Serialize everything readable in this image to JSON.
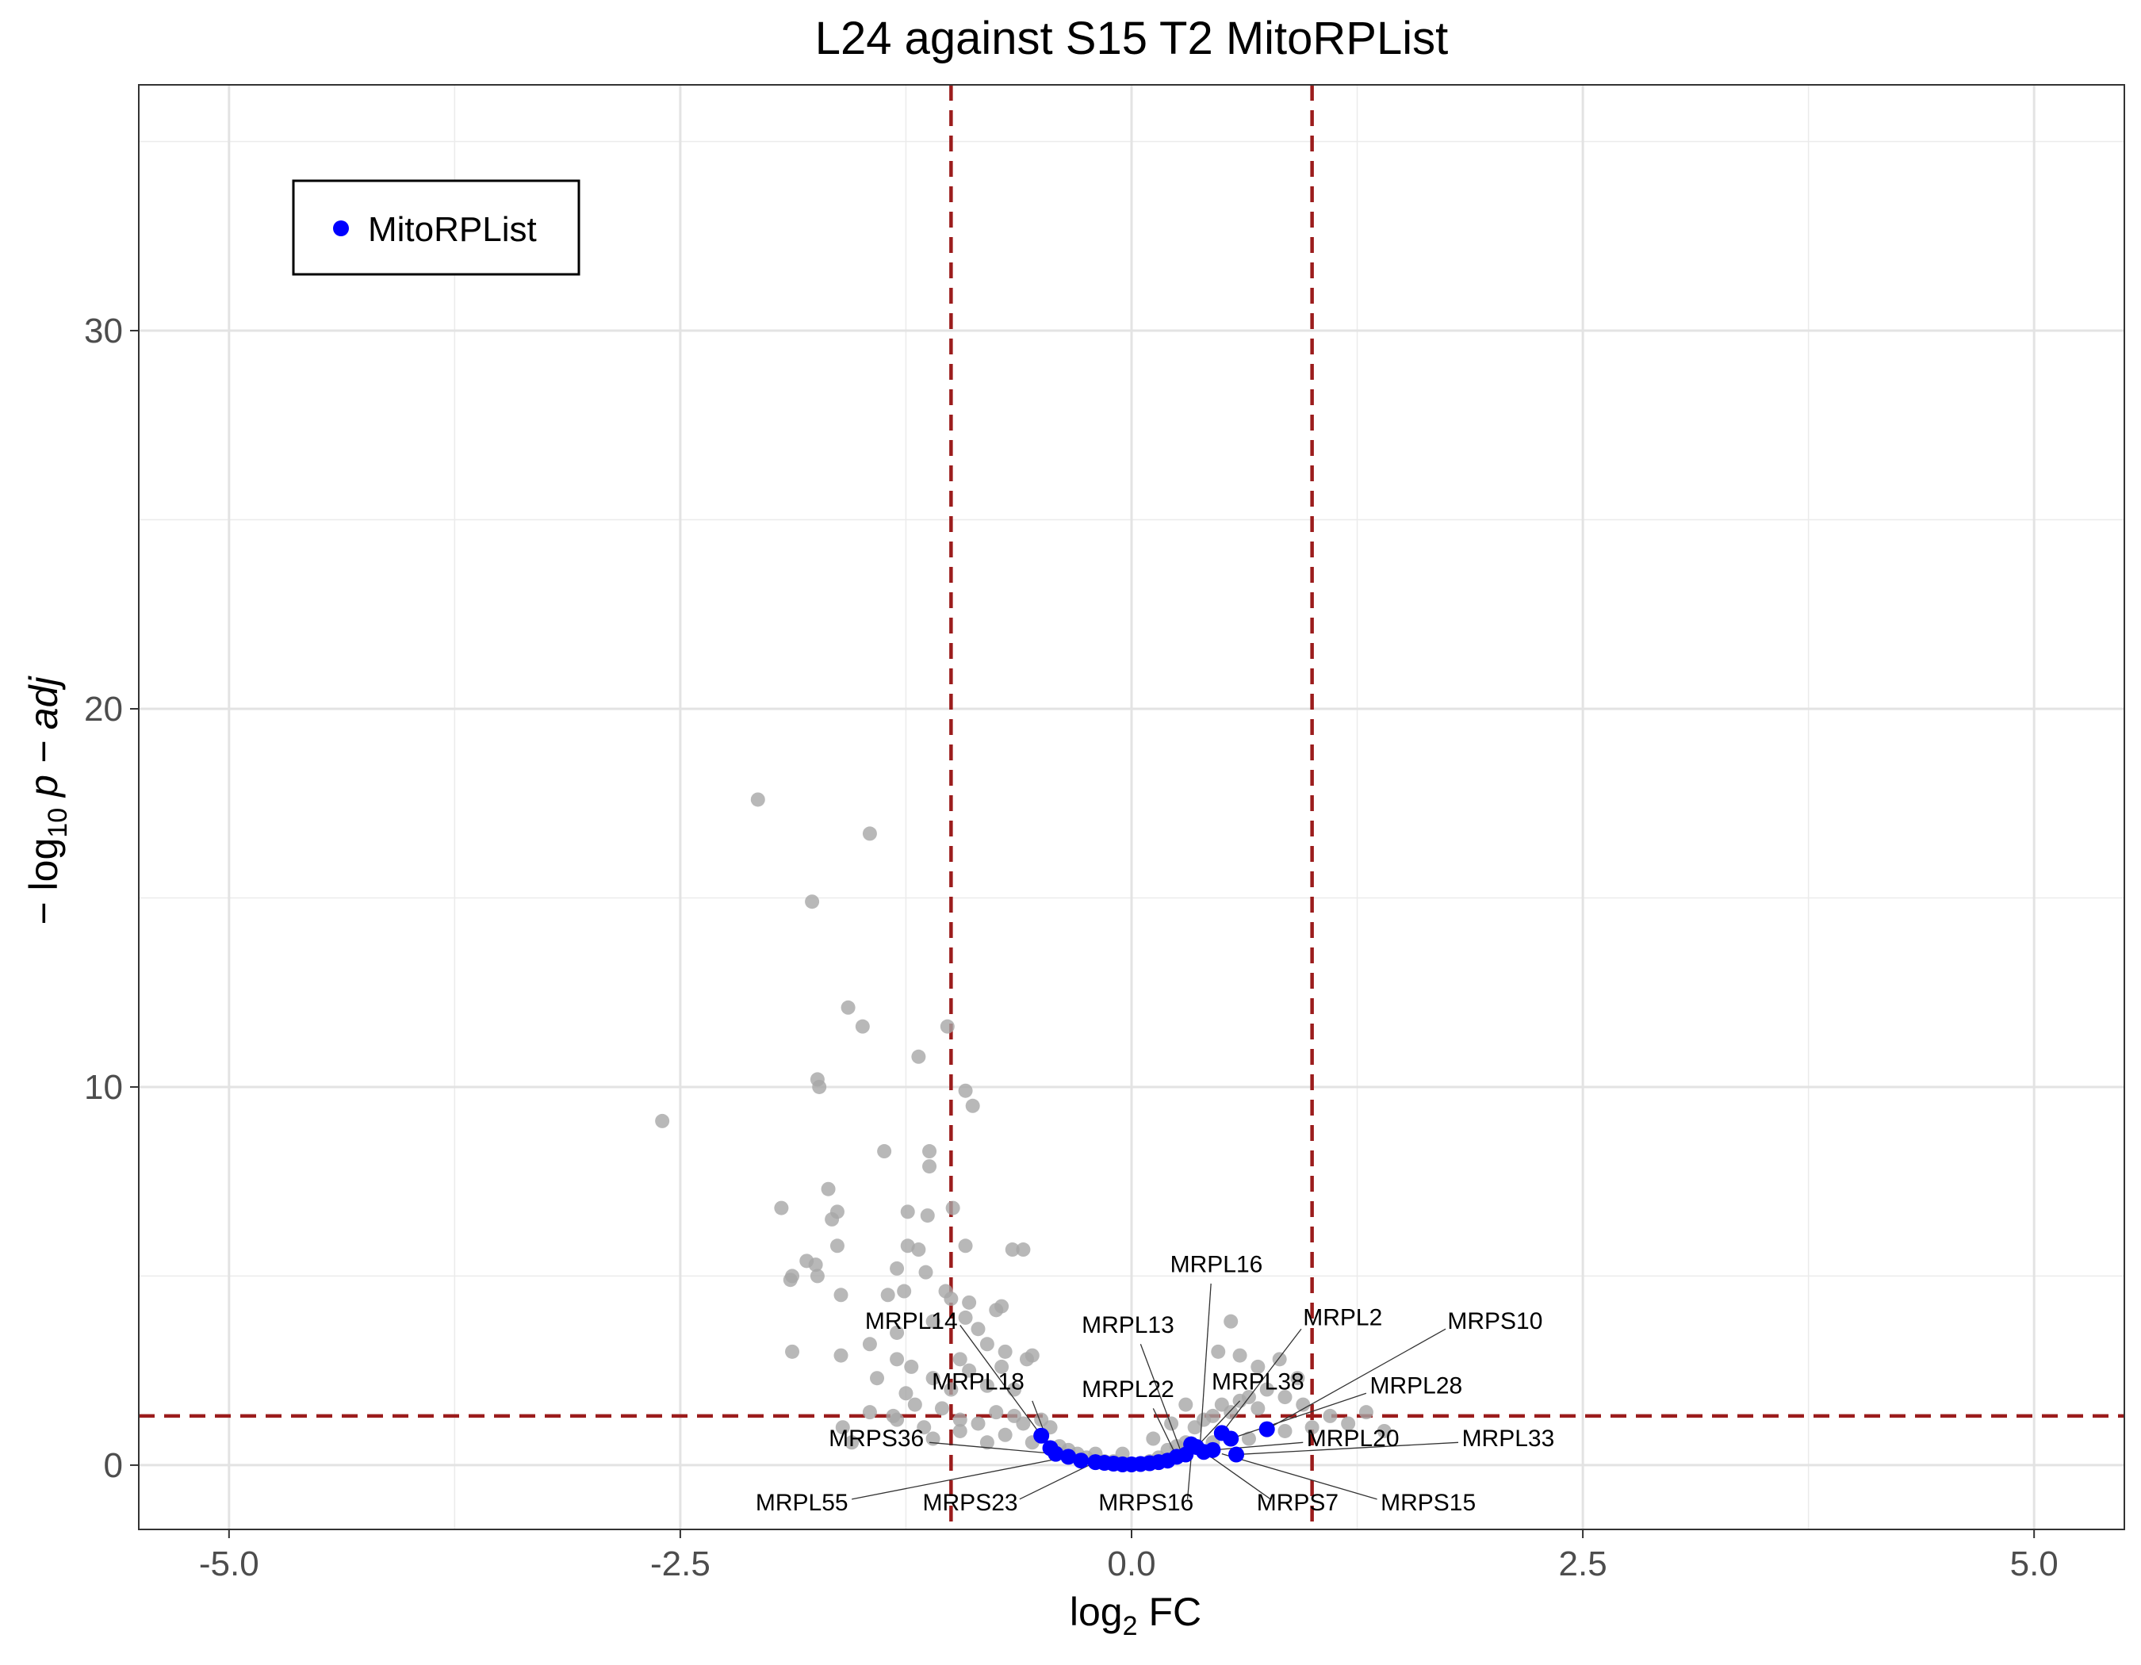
{
  "chart_data": {
    "type": "scatter",
    "title": "L24 against S15 T2 MitoRPList",
    "xlabel": {
      "base": "log",
      "sub": "2",
      "rest": " FC"
    },
    "ylabel": {
      "prefix": "− log",
      "sub": "10",
      "rest": " p − adj"
    },
    "xlim": [
      -5.5,
      5.5
    ],
    "ylim": [
      -1.7,
      36.5
    ],
    "x_ticks": [
      -5.0,
      -2.5,
      0.0,
      2.5,
      5.0
    ],
    "x_tick_labels": [
      "-5.0",
      "-2.5",
      "0.0",
      "2.5",
      "5.0"
    ],
    "y_ticks": [
      0,
      10,
      20,
      30
    ],
    "y_tick_labels": [
      "0",
      "10",
      "20",
      "30"
    ],
    "x_minor_ticks": [
      -3.75,
      -1.25,
      1.25,
      3.75
    ],
    "y_minor_ticks": [
      5,
      15,
      25,
      35
    ],
    "grid": true,
    "thresholds": {
      "x": [
        -1,
        1
      ],
      "y": 1.3,
      "color": "#9b1c1c"
    },
    "legend": {
      "position": "top-left",
      "entries": [
        {
          "name": "MitoRPList",
          "color": "#0000ff"
        }
      ]
    },
    "colors": {
      "background_points": "#a6a6a6",
      "highlight_points": "#0000ff"
    },
    "series": [
      {
        "name": "background",
        "points": [
          [
            -2.6,
            9.1
          ],
          [
            -2.07,
            17.6
          ],
          [
            -1.45,
            16.7
          ],
          [
            -1.77,
            14.9
          ],
          [
            -1.57,
            12.1
          ],
          [
            -1.49,
            11.6
          ],
          [
            -1.02,
            11.6
          ],
          [
            -1.18,
            10.8
          ],
          [
            -1.74,
            10.2
          ],
          [
            -1.73,
            10.0
          ],
          [
            -0.92,
            9.9
          ],
          [
            -0.88,
            9.5
          ],
          [
            -1.37,
            8.3
          ],
          [
            -1.12,
            8.3
          ],
          [
            -1.12,
            7.9
          ],
          [
            -1.68,
            7.3
          ],
          [
            -1.94,
            6.8
          ],
          [
            -1.63,
            6.7
          ],
          [
            -1.66,
            6.5
          ],
          [
            -1.24,
            6.7
          ],
          [
            -1.13,
            6.6
          ],
          [
            -0.99,
            6.8
          ],
          [
            -1.24,
            5.8
          ],
          [
            -1.63,
            5.8
          ],
          [
            -1.18,
            5.7
          ],
          [
            -0.92,
            5.8
          ],
          [
            -0.66,
            5.7
          ],
          [
            -0.6,
            5.7
          ],
          [
            -1.8,
            5.4
          ],
          [
            -1.75,
            5.3
          ],
          [
            -1.88,
            5.0
          ],
          [
            -1.89,
            4.9
          ],
          [
            -1.74,
            5.0
          ],
          [
            -1.3,
            5.2
          ],
          [
            -1.14,
            5.1
          ],
          [
            -1.26,
            4.6
          ],
          [
            -1.03,
            4.6
          ],
          [
            -1.35,
            4.5
          ],
          [
            -1.61,
            4.5
          ],
          [
            -1.0,
            4.4
          ],
          [
            -0.9,
            4.3
          ],
          [
            -0.72,
            4.2
          ],
          [
            -0.75,
            4.1
          ],
          [
            -0.92,
            3.9
          ],
          [
            -1.1,
            3.8
          ],
          [
            -0.85,
            3.6
          ],
          [
            -1.3,
            3.5
          ],
          [
            -1.45,
            3.2
          ],
          [
            -0.8,
            3.2
          ],
          [
            -0.7,
            3.0
          ],
          [
            -1.88,
            3.0
          ],
          [
            -1.61,
            2.9
          ],
          [
            -1.3,
            2.8
          ],
          [
            -1.22,
            2.6
          ],
          [
            -0.95,
            2.8
          ],
          [
            -0.55,
            2.9
          ],
          [
            -0.58,
            2.8
          ],
          [
            -1.41,
            2.3
          ],
          [
            -1.1,
            2.3
          ],
          [
            -0.8,
            2.1
          ],
          [
            -1.0,
            2.0
          ],
          [
            -1.25,
            1.9
          ],
          [
            -0.65,
            2.0
          ],
          [
            -1.45,
            1.4
          ],
          [
            -1.32,
            1.3
          ],
          [
            -1.2,
            1.6
          ],
          [
            -1.05,
            1.5
          ],
          [
            -0.95,
            1.2
          ],
          [
            -0.85,
            1.1
          ],
          [
            -0.75,
            1.4
          ],
          [
            -0.65,
            1.3
          ],
          [
            -1.15,
            1.0
          ],
          [
            -0.95,
            0.9
          ],
          [
            -0.7,
            0.8
          ],
          [
            -0.6,
            1.1
          ],
          [
            -0.5,
            1.2
          ],
          [
            -0.45,
            1.0
          ],
          [
            -1.3,
            1.2
          ],
          [
            -1.1,
            0.7
          ],
          [
            -0.8,
            0.6
          ],
          [
            -0.55,
            0.6
          ],
          [
            -0.4,
            0.5
          ],
          [
            -0.35,
            0.4
          ],
          [
            -0.3,
            0.3
          ],
          [
            -0.25,
            0.2
          ],
          [
            -0.2,
            0.3
          ],
          [
            -0.15,
            0.1
          ],
          [
            -0.1,
            0.1
          ],
          [
            -0.05,
            0.05
          ],
          [
            0.05,
            0.05
          ],
          [
            0.1,
            0.1
          ],
          [
            0.15,
            0.2
          ],
          [
            0.2,
            0.4
          ],
          [
            0.25,
            0.5
          ],
          [
            0.3,
            0.6
          ],
          [
            0.35,
            1.0
          ],
          [
            0.4,
            1.2
          ],
          [
            0.45,
            1.3
          ],
          [
            0.5,
            1.6
          ],
          [
            0.55,
            1.4
          ],
          [
            0.6,
            1.7
          ],
          [
            0.65,
            1.8
          ],
          [
            0.7,
            1.5
          ],
          [
            0.75,
            2.0
          ],
          [
            0.85,
            1.8
          ],
          [
            0.95,
            1.6
          ],
          [
            1.1,
            1.3
          ],
          [
            1.2,
            1.1
          ],
          [
            1.3,
            1.4
          ],
          [
            1.4,
            0.9
          ],
          [
            0.48,
            3.0
          ],
          [
            0.6,
            2.9
          ],
          [
            0.55,
            3.8
          ],
          [
            0.82,
            2.8
          ],
          [
            0.7,
            2.6
          ],
          [
            0.92,
            2.3
          ],
          [
            0.3,
            1.6
          ],
          [
            0.22,
            1.1
          ],
          [
            0.12,
            0.7
          ],
          [
            -0.05,
            0.3
          ],
          [
            0.45,
            0.6
          ],
          [
            0.65,
            0.7
          ],
          [
            0.85,
            0.9
          ],
          [
            1.0,
            1.0
          ],
          [
            -1.55,
            0.6
          ],
          [
            -1.6,
            1.0
          ],
          [
            -0.9,
            2.5
          ],
          [
            -0.72,
            2.6
          ]
        ]
      },
      {
        "name": "MitoRPList",
        "points": [
          [
            -0.5,
            0.78
          ],
          [
            -0.45,
            0.45
          ],
          [
            -0.42,
            0.3
          ],
          [
            -0.35,
            0.22
          ],
          [
            -0.28,
            0.12
          ],
          [
            -0.2,
            0.08
          ],
          [
            -0.15,
            0.06
          ],
          [
            -0.1,
            0.04
          ],
          [
            -0.05,
            0.02
          ],
          [
            0.0,
            0.02
          ],
          [
            0.05,
            0.03
          ],
          [
            0.1,
            0.05
          ],
          [
            0.15,
            0.08
          ],
          [
            0.2,
            0.12
          ],
          [
            0.25,
            0.22
          ],
          [
            0.3,
            0.28
          ],
          [
            0.33,
            0.55
          ],
          [
            0.36,
            0.48
          ],
          [
            0.4,
            0.35
          ],
          [
            0.45,
            0.4
          ],
          [
            0.5,
            0.85
          ],
          [
            0.55,
            0.7
          ],
          [
            0.58,
            0.28
          ],
          [
            0.75,
            0.95
          ]
        ]
      }
    ],
    "labels": [
      {
        "text": "MRPL16",
        "point": [
          0.38,
          0.55
        ],
        "pos": [
          0.47,
          5.1
        ],
        "anchor": "middle",
        "line_to": [
          0.44,
          4.8
        ]
      },
      {
        "text": "MRPL2",
        "point": [
          0.5,
          0.85
        ],
        "pos": [
          0.95,
          3.7
        ],
        "anchor": "start",
        "line_to": [
          0.94,
          3.6
        ]
      },
      {
        "text": "MRPS10",
        "point": [
          0.75,
          0.95
        ],
        "pos": [
          1.75,
          3.6
        ],
        "anchor": "start",
        "line_to": [
          1.74,
          3.6
        ]
      },
      {
        "text": "MRPL14",
        "point": [
          -0.5,
          0.78
        ],
        "pos": [
          -1.22,
          3.6
        ],
        "anchor": "middle",
        "line_to": [
          -0.95,
          3.7
        ]
      },
      {
        "text": "MRPL13",
        "point": [
          0.28,
          0.28
        ],
        "pos": [
          -0.02,
          3.5
        ],
        "anchor": "middle",
        "line_to": [
          0.05,
          3.2
        ]
      },
      {
        "text": "MRPL38",
        "point": [
          0.36,
          0.48
        ],
        "pos": [
          0.7,
          2.0
        ],
        "anchor": "middle",
        "line_to": [
          0.6,
          1.7
        ]
      },
      {
        "text": "MRPL28",
        "point": [
          0.55,
          0.7
        ],
        "pos": [
          1.32,
          1.9
        ],
        "anchor": "start",
        "line_to": [
          1.3,
          1.9
        ]
      },
      {
        "text": "MRPL18",
        "point": [
          -0.45,
          0.45
        ],
        "pos": [
          -0.85,
          2.0
        ],
        "anchor": "middle",
        "line_to": [
          -0.55,
          1.7
        ]
      },
      {
        "text": "MRPL22",
        "point": [
          0.25,
          0.22
        ],
        "pos": [
          -0.02,
          1.8
        ],
        "anchor": "middle",
        "line_to": [
          0.12,
          1.5
        ]
      },
      {
        "text": "MRPS36",
        "point": [
          -0.42,
          0.3
        ],
        "pos": [
          -1.15,
          0.5
        ],
        "anchor": "end",
        "line_to": [
          -1.12,
          0.6
        ]
      },
      {
        "text": "MRPL20",
        "point": [
          0.45,
          0.4
        ],
        "pos": [
          0.97,
          0.5
        ],
        "anchor": "start",
        "line_to": [
          0.95,
          0.6
        ]
      },
      {
        "text": "MRPL33",
        "point": [
          0.58,
          0.28
        ],
        "pos": [
          1.83,
          0.5
        ],
        "anchor": "start",
        "line_to": [
          1.81,
          0.6
        ]
      },
      {
        "text": "MRPL55",
        "point": [
          -0.35,
          0.22
        ],
        "pos": [
          -1.57,
          -1.2
        ],
        "anchor": "end",
        "line_to": [
          -1.55,
          -0.9
        ]
      },
      {
        "text": "MRPS23",
        "point": [
          -0.2,
          0.08
        ],
        "pos": [
          -0.63,
          -1.2
        ],
        "anchor": "end",
        "line_to": [
          -0.62,
          -0.9
        ]
      },
      {
        "text": "MRPS16",
        "point": [
          0.33,
          0.2
        ],
        "pos": [
          0.08,
          -1.2
        ],
        "anchor": "middle",
        "line_to": [
          0.31,
          -0.9
        ]
      },
      {
        "text": "MRPS7",
        "point": [
          0.4,
          0.35
        ],
        "pos": [
          0.92,
          -1.2
        ],
        "anchor": "middle",
        "line_to": [
          0.77,
          -0.9
        ]
      },
      {
        "text": "MRPS15",
        "point": [
          0.5,
          0.3
        ],
        "pos": [
          1.38,
          -1.2
        ],
        "anchor": "start",
        "line_to": [
          1.36,
          -0.9
        ]
      }
    ]
  }
}
